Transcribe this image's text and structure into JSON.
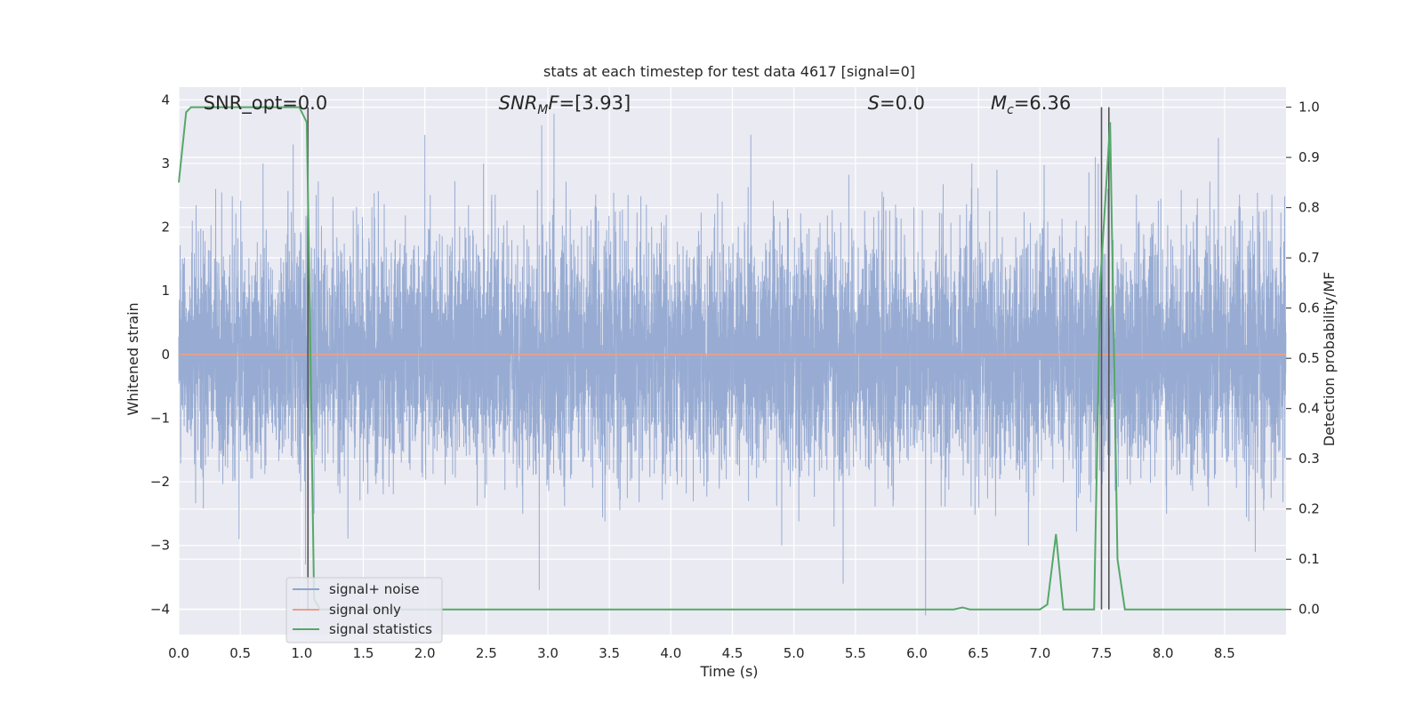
{
  "chart_data": {
    "type": "line",
    "title": "stats at each timestep for test data 4617 [signal=0]",
    "xlabel": "Time (s)",
    "ylabel": "Whitened strain",
    "ylabel_right": "Detection probability/MF",
    "xlim": [
      0.0,
      9.0
    ],
    "ylim": [
      -4.4,
      4.2
    ],
    "ylim_right": [
      -0.05,
      1.04
    ],
    "x_ticks": [
      0.0,
      0.5,
      1.0,
      1.5,
      2.0,
      2.5,
      3.0,
      3.5,
      4.0,
      4.5,
      5.0,
      5.5,
      6.0,
      6.5,
      7.0,
      7.5,
      8.0,
      8.5
    ],
    "x_tick_labels": [
      "0.0",
      "0.5",
      "1.0",
      "1.5",
      "2.0",
      "2.5",
      "3.0",
      "3.5",
      "4.0",
      "4.5",
      "5.0",
      "5.5",
      "6.0",
      "6.5",
      "7.0",
      "7.5",
      "8.0",
      "8.5"
    ],
    "y_ticks": [
      -4,
      -3,
      -2,
      -1,
      0,
      1,
      2,
      3,
      4
    ],
    "y_tick_labels": [
      "−4",
      "−3",
      "−2",
      "−1",
      "0",
      "1",
      "2",
      "3",
      "4"
    ],
    "y_ticks_right": [
      0.0,
      0.1,
      0.2,
      0.3,
      0.4,
      0.5,
      0.6,
      0.7,
      0.8,
      0.9,
      1.0
    ],
    "y_tick_labels_right": [
      "0.0",
      "0.1",
      "0.2",
      "0.3",
      "0.4",
      "0.5",
      "0.6",
      "0.7",
      "0.8",
      "0.9",
      "1.0"
    ],
    "grid": true,
    "legend_position": "lower-left",
    "annotations": [
      {
        "key": "snr-opt",
        "plain": "SNR_opt=0.0",
        "x_data": 0.2
      },
      {
        "key": "snr-mf",
        "base": "SNR",
        "sub": "M",
        "tail": "F=[3.93]",
        "italic": true,
        "x_data": 2.6
      },
      {
        "key": "s-value",
        "base": "S",
        "tail": "=0.0",
        "italic": true,
        "x_data": 5.6
      },
      {
        "key": "chirp-mass",
        "base": "M",
        "sub": "c",
        "tail": "=6.36",
        "italic": true,
        "x_data": 6.6
      }
    ],
    "series": [
      {
        "name": "signal+ noise",
        "color": "#8fa5cf",
        "axis": "left",
        "kind": "noise",
        "sample_rate_hz": 1000,
        "std": 0.9,
        "peaks": [
          [
            0.3,
            2.6
          ],
          [
            0.93,
            3.3
          ],
          [
            1.03,
            -3.3
          ],
          [
            1.1,
            -2.5
          ],
          [
            2.0,
            3.45
          ],
          [
            2.93,
            -3.7
          ],
          [
            2.95,
            3.6
          ],
          [
            3.05,
            3.78
          ],
          [
            4.65,
            3.45
          ],
          [
            5.4,
            -3.6
          ],
          [
            6.07,
            -4.1
          ],
          [
            6.65,
            2.9
          ],
          [
            7.45,
            3.1
          ],
          [
            7.55,
            2.6
          ],
          [
            8.45,
            3.4
          ],
          [
            8.75,
            -3.1
          ]
        ]
      },
      {
        "name": "signal only",
        "color": "#e8a08a",
        "axis": "left",
        "x": [
          0.0,
          9.0
        ],
        "y": [
          0.0,
          0.0
        ]
      },
      {
        "name": "signal statistics",
        "color": "#55a868",
        "axis": "right",
        "x": [
          0.0,
          0.06,
          0.1,
          0.5,
          0.98,
          1.04,
          1.06,
          1.1,
          1.15,
          1.2,
          6.3,
          6.37,
          6.43,
          7.0,
          7.06,
          7.13,
          7.19,
          7.44,
          7.49,
          7.57,
          7.63,
          7.69,
          9.0
        ],
        "y": [
          0.85,
          0.99,
          1.0,
          1.0,
          1.0,
          0.97,
          0.68,
          0.02,
          0.0,
          0.0,
          0.0,
          0.004,
          0.0,
          0.0,
          0.01,
          0.15,
          0.0,
          0.0,
          0.65,
          0.97,
          0.1,
          0.0,
          0.0
        ]
      }
    ],
    "vlines": [
      {
        "x": 1.05,
        "color": "#555555"
      },
      {
        "x": 7.5,
        "color": "#555555"
      },
      {
        "x": 7.56,
        "color": "#555555"
      }
    ]
  }
}
